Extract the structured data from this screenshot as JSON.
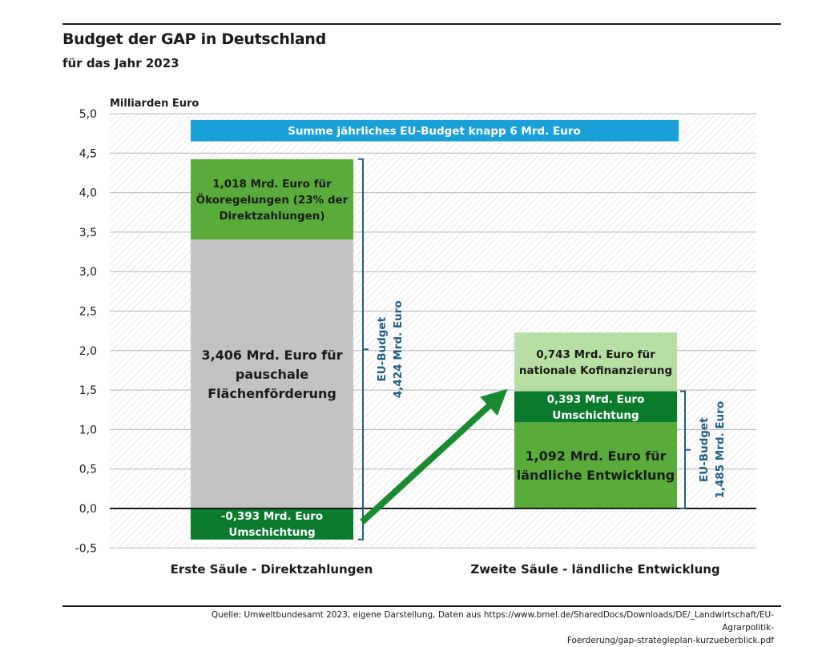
{
  "header": {
    "title": "Budget der GAP in Deutschland",
    "subtitle": "für das Jahr 2023"
  },
  "source": {
    "line1": "Quelle: Umweltbundesamt 2023, eigene Darstellung, Daten aus https://www.bmel.de/SharedDocs/Downloads/DE/_Landwirtschaft/EU-Agrarpolitik-",
    "line2": "Foerderung/gap-strategieplan-kurzueberblick.pdf"
  },
  "chart_data": {
    "type": "bar",
    "stacked": true,
    "ylabel": "Milliarden Euro",
    "ylim": [
      -0.5,
      5.0
    ],
    "yticks": [
      "5,0",
      "4,5",
      "4,0",
      "3,5",
      "3,0",
      "2,5",
      "2,0",
      "1,5",
      "1,0",
      "0,5",
      "0,0",
      "-0,5"
    ],
    "ytick_values": [
      5.0,
      4.5,
      4.0,
      3.5,
      3.0,
      2.5,
      2.0,
      1.5,
      1.0,
      0.5,
      0.0,
      -0.5
    ],
    "grid": true,
    "categories": [
      "Erste Säule - Direktzahlungen",
      "Zweite Säule - ländliche Entwicklung"
    ],
    "banner": {
      "text": "Summe jährliches EU-Budget knapp 6 Mrd. Euro",
      "value_range": [
        4.65,
        4.92
      ],
      "color": "#1aa0d8"
    },
    "segments": [
      {
        "category": 0,
        "from": -0.393,
        "to": 0.0,
        "value": -0.393,
        "color": "#0a7a2c",
        "text_color": "#ffffff",
        "lines": [
          "-0,393 Mrd. Euro",
          "Umschichtung"
        ]
      },
      {
        "category": 0,
        "from": 0.0,
        "to": 3.406,
        "value": 3.406,
        "color": "#c2c2c2",
        "text_color": "#1a1a1a",
        "lines": [
          "3,406 Mrd. Euro für",
          "pauschale",
          "Flächenförderung"
        ]
      },
      {
        "category": 0,
        "from": 3.406,
        "to": 4.424,
        "value": 1.018,
        "color": "#5aac3a",
        "text_color": "#1a1a1a",
        "lines": [
          "1,018 Mrd. Euro für",
          "Ökoregelungen (23% der",
          "Direktzahlungen)"
        ]
      },
      {
        "category": 1,
        "from": 0.0,
        "to": 1.092,
        "value": 1.092,
        "color": "#5aac3a",
        "text_color": "#1a1a1a",
        "lines": [
          "1,092 Mrd. Euro für",
          "ländliche Entwicklung"
        ]
      },
      {
        "category": 1,
        "from": 1.092,
        "to": 1.485,
        "value": 0.393,
        "color": "#0a7a2c",
        "text_color": "#ffffff",
        "lines": [
          "0,393 Mrd. Euro",
          "Umschichtung"
        ]
      },
      {
        "category": 1,
        "from": 1.485,
        "to": 2.228,
        "value": 0.743,
        "color": "#b7dfa3",
        "text_color": "#1a1a1a",
        "lines": [
          "0,743 Mrd. Euro für",
          "nationale Kofinanzierung"
        ]
      }
    ],
    "brackets": [
      {
        "category": 0,
        "from": -0.393,
        "to": 4.424,
        "lines": [
          "EU-Budget",
          "4,424 Mrd. Euro"
        ],
        "color": "#1f5f86"
      },
      {
        "category": 1,
        "from": 0.0,
        "to": 1.485,
        "lines": [
          "EU-Budget",
          "1,485 Mrd. Euro"
        ],
        "color": "#1f5f86"
      }
    ],
    "arrow": {
      "color": "#1a8a2e",
      "from": {
        "category": 0,
        "value": -0.17
      },
      "to": {
        "category": 1,
        "value": 1.36
      }
    }
  }
}
